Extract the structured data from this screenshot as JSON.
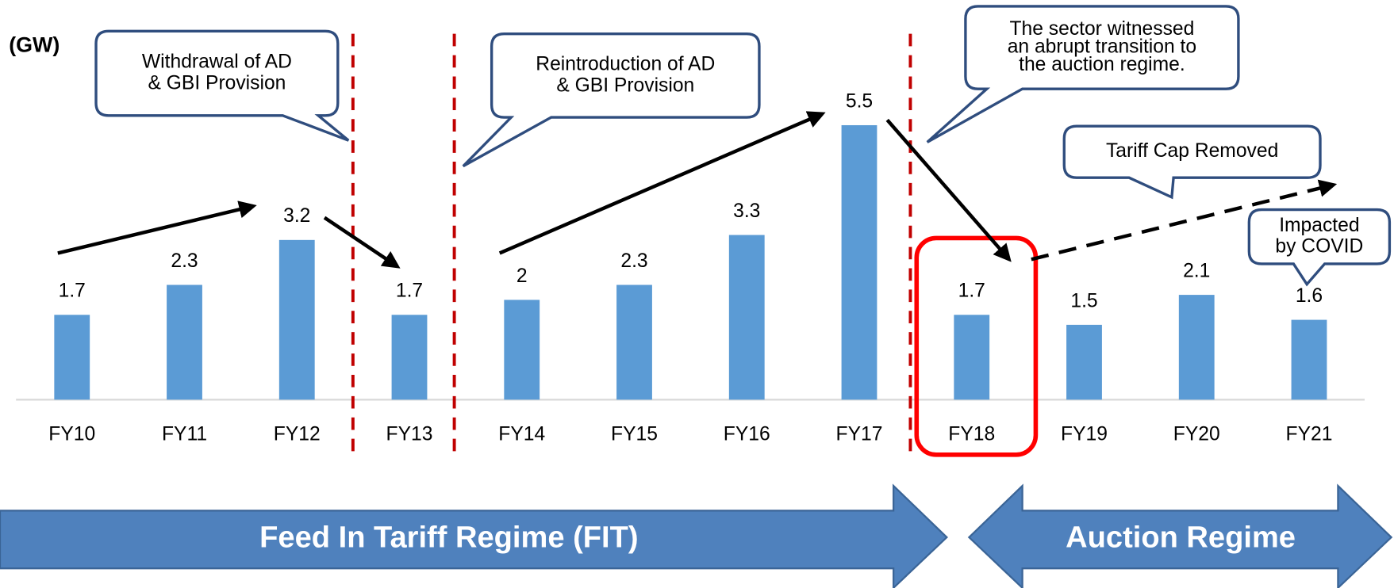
{
  "chart_data": {
    "type": "bar",
    "unit_label": "(GW)",
    "categories": [
      "FY10",
      "FY11",
      "FY12",
      "FY13",
      "FY14",
      "FY15",
      "FY16",
      "FY17",
      "FY18",
      "FY19",
      "FY20",
      "FY21"
    ],
    "values": [
      1.7,
      2.3,
      3.2,
      1.7,
      2,
      2.3,
      3.3,
      5.5,
      1.7,
      1.5,
      2.1,
      1.6
    ],
    "color": "#5b9bd5",
    "annotations": [
      {
        "lines": [
          "Withdrawal of AD",
          "& GBI Provision"
        ]
      },
      {
        "lines": [
          "Reintroduction of AD",
          "& GBI Provision"
        ]
      },
      {
        "lines": [
          "The sector witnessed",
          "an abrupt transition to",
          "the auction regime."
        ]
      },
      {
        "lines": [
          "Tariff Cap Removed"
        ]
      },
      {
        "lines": [
          "Impacted",
          "by COVID"
        ]
      }
    ],
    "regimes": [
      "Feed In Tariff Regime (FIT)",
      "Auction Regime"
    ]
  }
}
